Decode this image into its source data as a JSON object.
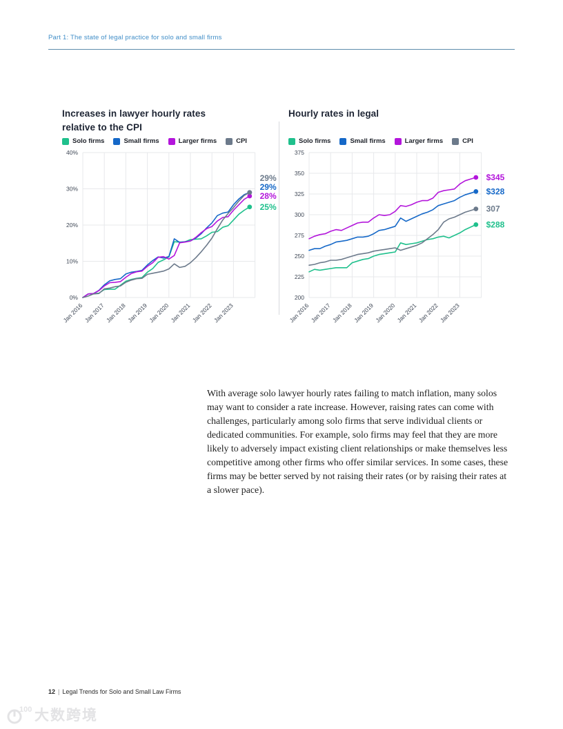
{
  "page": {
    "header": {
      "breadcrumb": "Part 1: The state of legal practice for solo and small firms"
    },
    "footer": {
      "page_number": "12",
      "separator": "|",
      "title": "Legal Trends for Solo and Small Law Firms"
    },
    "watermark": {
      "logo": "100",
      "text": "大数跨境"
    }
  },
  "paragraph": "With average solo lawyer hourly rates failing to match inflation, many solos may want to consider a rate increase. However, raising rates can come with challenges, particularly among solo firms that serve individual clients or dedicated communities. For example, solo firms may feel that they are more likely to adversely impact existing client relationships or make themselves less competitive among other firms who offer similar services. In some cases, these firms may be better served by not raising their rates (or by raising their rates at a slower pace).",
  "colors": {
    "accent_header": "#3f8dc7",
    "solo": "#1fc08c",
    "small": "#1568c8",
    "larger": "#b315db",
    "cpi": "#6c7a8b",
    "grid": "#e7e8eb",
    "tick_text": "#3e4755",
    "title_text": "#1d2433"
  },
  "chart_data": [
    {
      "type": "line",
      "title": "Increases in lawyer hourly rates relative to the CPI",
      "x_tick_labels": [
        "Jan 2016",
        "Jan 2017",
        "Jan 2018",
        "Jan 2019",
        "Jan 2020",
        "Jan 2021",
        "Jan 2022",
        "Jan 2023"
      ],
      "points_per_year": 4,
      "ylim": [
        0,
        40
      ],
      "y_ticks": [
        40,
        30,
        20,
        10,
        0
      ],
      "y_tick_suffix": "%",
      "grid": true,
      "legend_position": "top",
      "series": [
        {
          "name": "Solo firms",
          "color": "#1fc08c",
          "end_label": "25%",
          "values": [
            0,
            1,
            1.1,
            1.2,
            2.2,
            2.3,
            2.3,
            3.4,
            4.5,
            5,
            5.3,
            5.5,
            7,
            8,
            9.7,
            10.4,
            11.2,
            15.4,
            15.3,
            15.4,
            16,
            16.1,
            16.2,
            17,
            18,
            18.2,
            19.4,
            19.8,
            21.4,
            23,
            24.1,
            25
          ]
        },
        {
          "name": "Small firms",
          "color": "#1568c8",
          "end_label": "29%",
          "values": [
            0,
            1,
            1.1,
            2,
            3.5,
            4.6,
            5,
            5.2,
            6.5,
            7,
            7.2,
            7.5,
            9,
            10.2,
            11.2,
            10.9,
            11.3,
            16.2,
            15.2,
            15.4,
            15.6,
            16.4,
            17.6,
            19.2,
            20.6,
            22.6,
            23.3,
            23.6,
            25.6,
            27.2,
            28.4,
            29
          ]
        },
        {
          "name": "Larger firms",
          "color": "#b315db",
          "end_label": "28%",
          "values": [
            0,
            1,
            1.1,
            1.9,
            3.2,
            4.1,
            4.2,
            4.4,
            5.6,
            6.6,
            7.1,
            7.3,
            8.6,
            9.6,
            11.1,
            11.3,
            10.6,
            11.6,
            15.1,
            15.3,
            15.6,
            16.6,
            17.9,
            19,
            19.6,
            21.1,
            22.1,
            22.3,
            24.1,
            25.6,
            27.1,
            28
          ]
        },
        {
          "name": "CPI",
          "color": "#6c7a8b",
          "end_label": "29%",
          "values": [
            0,
            0.4,
            1,
            1.1,
            2.4,
            2.6,
            3,
            3.2,
            4.2,
            4.8,
            5.2,
            5.3,
            6.4,
            6.7,
            7,
            7.3,
            7.9,
            9.3,
            8.3,
            8.6,
            9.6,
            11,
            12.6,
            14.4,
            16.4,
            19,
            21.4,
            23.2,
            24.8,
            26.6,
            28.2,
            29
          ]
        }
      ]
    },
    {
      "type": "line",
      "title": "Hourly rates in legal",
      "x_tick_labels": [
        "Jan 2016",
        "Jan 2017",
        "Jan 2018",
        "Jan 2019",
        "Jan 2020",
        "Jan 2021",
        "Jan 2022",
        "Jan 2023"
      ],
      "points_per_year": 4,
      "ylim": [
        200,
        375
      ],
      "y_ticks": [
        375,
        350,
        325,
        300,
        275,
        250,
        225,
        200
      ],
      "y_tick_suffix": "",
      "grid": true,
      "legend_position": "top",
      "series": [
        {
          "name": "Solo firms",
          "color": "#1fc08c",
          "end_label": "$288",
          "values": [
            231,
            234,
            233,
            234,
            235,
            236,
            236,
            236,
            242,
            244,
            246,
            247,
            250,
            252,
            253,
            254,
            255,
            266,
            264,
            265,
            266,
            268,
            270,
            271,
            273,
            274,
            272,
            275,
            278,
            282,
            285,
            288
          ]
        },
        {
          "name": "Small firms",
          "color": "#1568c8",
          "end_label": "$328",
          "values": [
            257,
            259,
            259,
            262,
            264,
            267,
            268,
            269,
            271,
            273,
            273,
            274,
            277,
            281,
            282,
            284,
            286,
            296,
            292,
            295,
            298,
            301,
            303,
            306,
            311,
            313,
            315,
            317,
            321,
            324,
            326,
            328
          ]
        },
        {
          "name": "Larger firms",
          "color": "#b315db",
          "end_label": "$345",
          "values": [
            271,
            274,
            276,
            277,
            280,
            282,
            281,
            284,
            287,
            290,
            291,
            291,
            296,
            300,
            299,
            300,
            304,
            311,
            310,
            312,
            315,
            317,
            317,
            320,
            327,
            329,
            330,
            331,
            337,
            341,
            343,
            345
          ]
        },
        {
          "name": "CPI",
          "color": "#6c7a8b",
          "end_label": "307",
          "values": [
            239,
            240,
            242,
            243,
            245,
            245,
            246,
            248,
            250,
            252,
            253,
            254,
            256,
            257,
            258,
            259,
            260,
            257,
            259,
            261,
            263,
            266,
            271,
            276,
            282,
            291,
            295,
            297,
            300,
            303,
            305,
            307
          ]
        }
      ]
    }
  ]
}
